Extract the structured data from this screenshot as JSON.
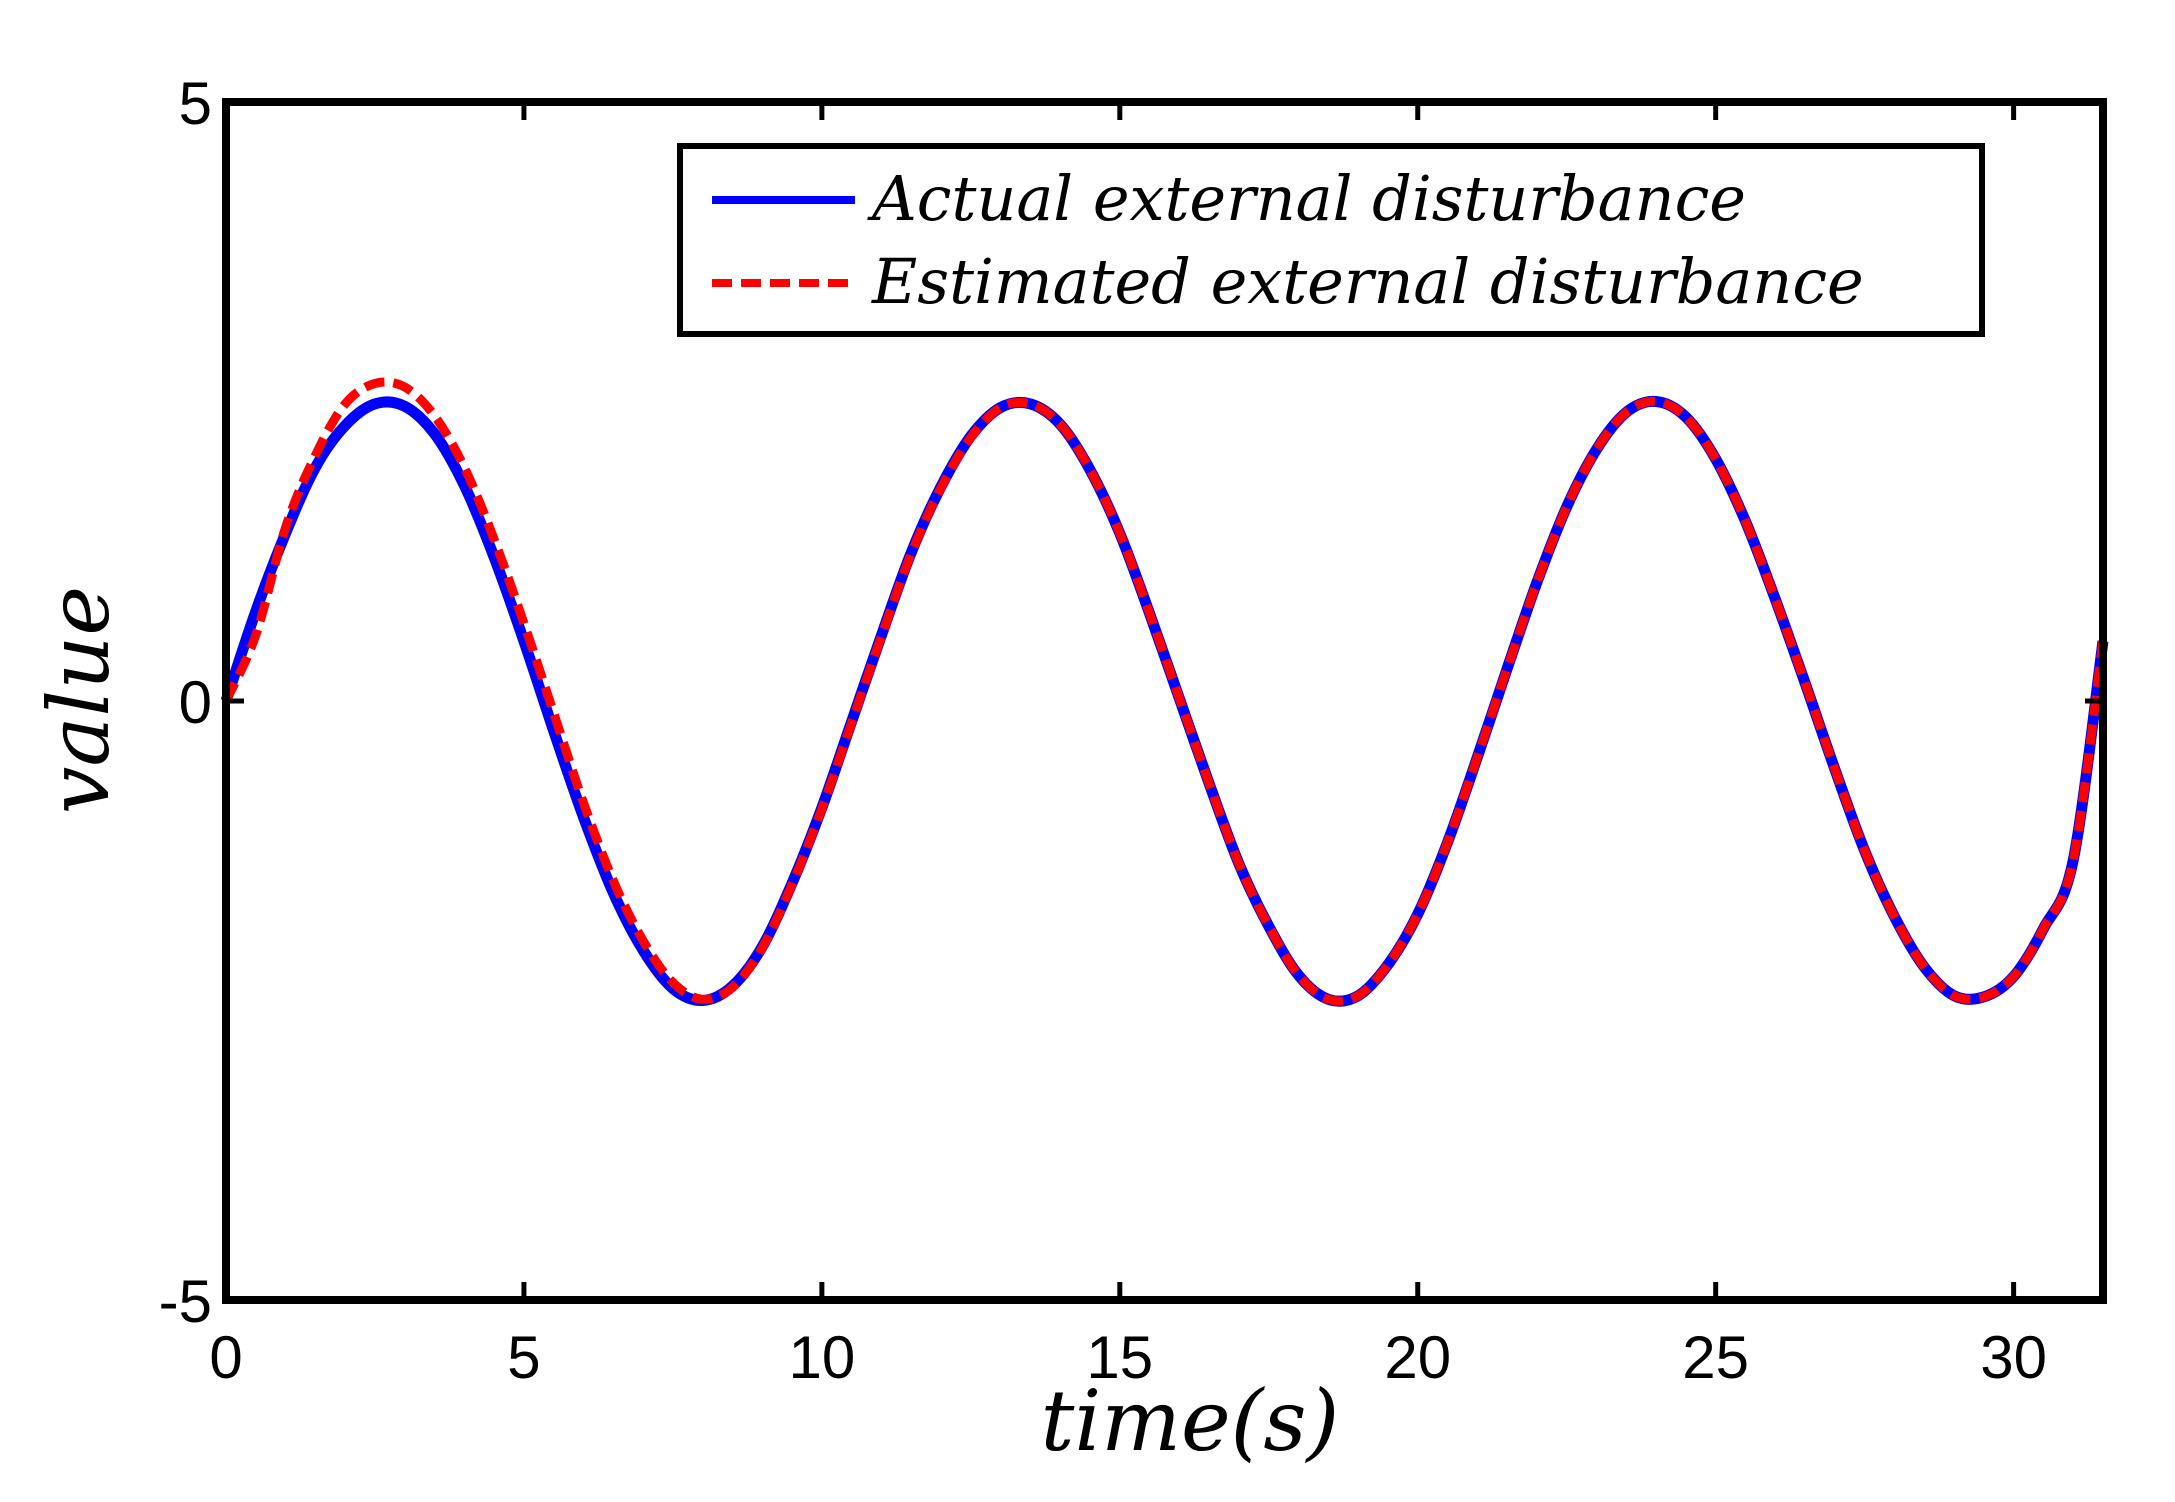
{
  "chart_data": {
    "type": "line",
    "title": "",
    "xlabel": "time(s)",
    "ylabel": "value",
    "xlim": [
      0,
      31.5
    ],
    "ylim": [
      -5,
      5
    ],
    "xticks": [
      {
        "value": 0,
        "label": "0"
      },
      {
        "value": 5,
        "label": "5"
      },
      {
        "value": 10,
        "label": "10"
      },
      {
        "value": 15,
        "label": "15"
      },
      {
        "value": 20,
        "label": "20"
      },
      {
        "value": 25,
        "label": "25"
      },
      {
        "value": 30,
        "label": "30"
      }
    ],
    "yticks": [
      {
        "value": 5,
        "label": "5"
      },
      {
        "value": 0,
        "label": "0"
      },
      {
        "value": -5,
        "label": "-5"
      }
    ],
    "grid": false,
    "legend_position": "top-right",
    "series": [
      {
        "name": "Actual external disturbance",
        "color": "#0000ff",
        "style": "solid",
        "x": [
          0,
          0.5,
          1,
          1.5,
          2,
          2.5,
          3,
          3.5,
          4,
          4.5,
          5,
          5.5,
          6,
          6.5,
          7,
          7.5,
          8,
          8.5,
          9,
          9.5,
          10,
          10.5,
          11,
          11.5,
          12,
          12.5,
          13,
          13.5,
          14,
          14.5,
          15,
          15.5,
          16,
          16.5,
          17,
          17.5,
          18,
          18.5,
          19,
          19.5,
          20,
          20.5,
          21,
          21.5,
          22,
          22.5,
          23,
          23.5,
          24,
          24.5,
          25,
          25.5,
          26,
          26.5,
          27,
          27.5,
          28,
          28.5,
          29,
          29.5,
          30,
          30.5,
          31,
          31.5
        ],
        "values": [
          0,
          0.75,
          1.4,
          1.95,
          2.3,
          2.48,
          2.46,
          2.23,
          1.8,
          1.2,
          0.5,
          -0.25,
          -0.97,
          -1.6,
          -2.08,
          -2.4,
          -2.5,
          -2.38,
          -2.05,
          -1.52,
          -0.89,
          -0.17,
          0.55,
          1.24,
          1.79,
          2.21,
          2.45,
          2.48,
          2.31,
          1.93,
          1.4,
          0.73,
          0.02,
          -0.69,
          -1.36,
          -1.88,
          -2.29,
          -2.49,
          -2.46,
          -2.2,
          -1.78,
          -1.18,
          -0.47,
          0.27,
          0.99,
          1.62,
          2.1,
          2.41,
          2.5,
          2.37,
          2.02,
          1.5,
          0.85,
          0.15,
          -0.57,
          -1.25,
          -1.8,
          -2.22,
          -2.46,
          -2.47,
          -2.3,
          -1.9,
          -1.33,
          0.5
        ]
      },
      {
        "name": "Estimated external disturbance",
        "color": "#ff0000",
        "style": "dashed",
        "x": [
          0,
          0.5,
          1,
          1.5,
          2,
          2.5,
          3,
          3.5,
          4,
          4.5,
          5,
          5.5,
          6,
          6.5,
          7,
          7.5,
          8,
          8.5,
          9,
          9.5,
          10,
          10.5,
          11,
          11.5,
          12,
          12.5,
          13,
          13.5,
          14,
          14.5,
          15,
          15.5,
          16,
          16.5,
          17,
          17.5,
          18,
          18.5,
          19,
          19.5,
          20,
          20.5,
          21,
          21.5,
          22,
          22.5,
          23,
          23.5,
          24,
          24.5,
          25,
          25.5,
          26,
          26.5,
          27,
          27.5,
          28,
          28.5,
          29,
          29.5,
          30,
          30.5,
          31,
          31.5
        ],
        "values": [
          0,
          0.55,
          1.45,
          2.05,
          2.48,
          2.65,
          2.62,
          2.38,
          1.95,
          1.35,
          0.65,
          -0.1,
          -0.85,
          -1.5,
          -2.0,
          -2.35,
          -2.49,
          -2.39,
          -2.06,
          -1.53,
          -0.9,
          -0.18,
          0.54,
          1.23,
          1.78,
          2.2,
          2.45,
          2.48,
          2.31,
          1.93,
          1.4,
          0.73,
          0.02,
          -0.69,
          -1.36,
          -1.88,
          -2.29,
          -2.49,
          -2.46,
          -2.2,
          -1.78,
          -1.18,
          -0.47,
          0.27,
          0.99,
          1.62,
          2.1,
          2.41,
          2.5,
          2.37,
          2.02,
          1.5,
          0.85,
          0.15,
          -0.57,
          -1.25,
          -1.8,
          -2.22,
          -2.46,
          -2.47,
          -2.3,
          -1.9,
          -1.33,
          0.5
        ]
      }
    ]
  }
}
